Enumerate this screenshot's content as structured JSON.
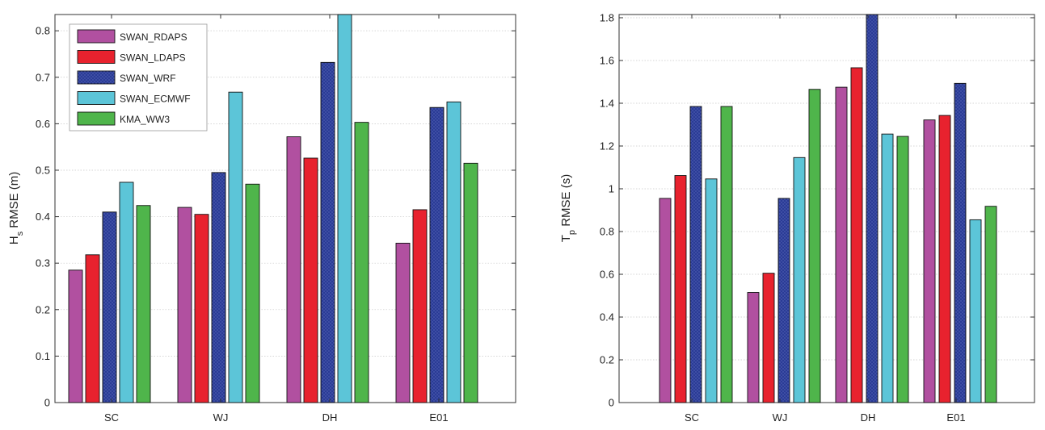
{
  "chart_data": [
    {
      "type": "bar",
      "categories": [
        "SC",
        "WJ",
        "DH",
        "E01"
      ],
      "series": [
        {
          "name": "SWAN_RDAPS",
          "color": "#b150a0",
          "values": [
            0.285,
            0.42,
            0.572,
            0.343
          ]
        },
        {
          "name": "SWAN_LDAPS",
          "color": "#e8222e",
          "values": [
            0.318,
            0.405,
            0.526,
            0.415
          ]
        },
        {
          "name": "SWAN_WRF",
          "color": "#2a3b96",
          "values": [
            0.41,
            0.495,
            0.732,
            0.635
          ]
        },
        {
          "name": "SWAN_ECMWF",
          "color": "#5cc5d8",
          "values": [
            0.474,
            0.668,
            0.84,
            0.647
          ]
        },
        {
          "name": "KMA_WW3",
          "color": "#4fb54b",
          "values": [
            0.424,
            0.47,
            0.603,
            0.515
          ]
        }
      ],
      "ylabel_main": "H",
      "ylabel_sub": "s",
      "ylabel_rest": " RMSE (m)",
      "ylim": [
        0,
        0.835
      ],
      "yticks": [
        "0",
        "0.1",
        "0.2",
        "0.3",
        "0.4",
        "0.5",
        "0.6",
        "0.7",
        "0.8"
      ],
      "ytick_values": [
        0,
        0.1,
        0.2,
        0.3,
        0.4,
        0.5,
        0.6,
        0.7,
        0.8
      ],
      "grid": true,
      "legend": "top-left"
    },
    {
      "type": "bar",
      "categories": [
        "SC",
        "WJ",
        "DH",
        "E01"
      ],
      "series": [
        {
          "name": "SWAN_RDAPS",
          "color": "#b150a0",
          "values": [
            0.955,
            0.515,
            1.475,
            1.322
          ]
        },
        {
          "name": "SWAN_LDAPS",
          "color": "#e8222e",
          "values": [
            1.062,
            0.605,
            1.566,
            1.343
          ]
        },
        {
          "name": "SWAN_WRF",
          "color": "#2a3b96",
          "values": [
            1.385,
            0.955,
            1.82,
            1.493
          ]
        },
        {
          "name": "SWAN_ECMWF",
          "color": "#5cc5d8",
          "values": [
            1.046,
            1.146,
            1.256,
            0.855
          ]
        },
        {
          "name": "KMA_WW3",
          "color": "#4fb54b",
          "values": [
            1.385,
            1.465,
            1.245,
            0.918
          ]
        }
      ],
      "ylabel_main": "T",
      "ylabel_sub": "p",
      "ylabel_rest": " RMSE (s)",
      "ylim": [
        0,
        1.815
      ],
      "yticks": [
        "0",
        "0.2",
        "0.4",
        "0.6",
        "0.8",
        "1",
        "1.2",
        "1.4",
        "1.6",
        "1.8"
      ],
      "ytick_values": [
        0,
        0.2,
        0.4,
        0.6,
        0.8,
        1.0,
        1.2,
        1.4,
        1.6,
        1.8
      ],
      "grid": true,
      "legend": "none"
    }
  ]
}
